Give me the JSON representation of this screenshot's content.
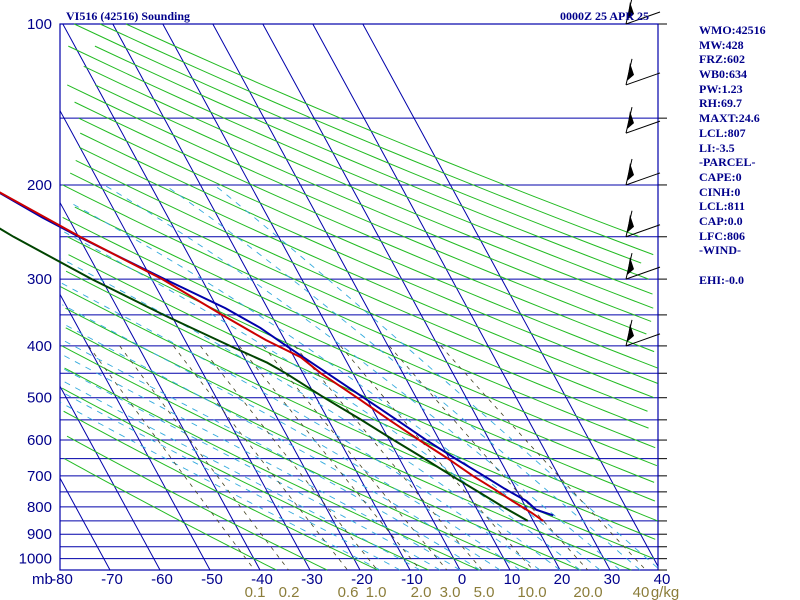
{
  "header": {
    "title_left": "VI516 (42516) Sounding",
    "title_right": "0000Z 25 APR 25"
  },
  "stats": [
    "WMO:42516",
    "MW:428",
    "FRZ:602",
    "WB0:634",
    "PW:1.23",
    "RH:69.7",
    "MAXT:24.6",
    "LCL:807",
    "LI:-3.5",
    "-PARCEL-",
    "CAPE:0",
    "CINH:0",
    "LCL:811",
    "CAP:0.0",
    "LFC:806",
    "-WIND-",
    "",
    "EHI:-0.0"
  ],
  "chart_data": {
    "type": "line",
    "title": "VI516 (42516) Sounding",
    "pressure_unit_label": "mb",
    "pressure_tick_labels": [
      "100",
      "200",
      "300",
      "400",
      "500",
      "600",
      "700",
      "800",
      "900",
      "1000"
    ],
    "temperature_tick_labels": [
      "-80",
      "-70",
      "-60",
      "-50",
      "-40",
      "-30",
      "-20",
      "-10",
      "0",
      "10",
      "20",
      "30",
      "40"
    ],
    "mixing_ratio_labels": [
      "0.1",
      "0.2",
      "0.6",
      "1.0",
      "2.0",
      "3.0",
      "5.0",
      "10.0",
      "20.0",
      "40",
      "g/kg"
    ],
    "mixing_ratio_values": [
      0.1,
      0.2,
      0.6,
      1.0,
      2.0,
      3.0,
      5.0,
      10.0,
      20.0,
      40.0
    ],
    "pressure_range": [
      100,
      1050
    ],
    "temperature_range": [
      -80,
      40
    ],
    "series": [
      {
        "color": "#0000aa",
        "pressure": [
          830,
          810,
          780,
          740,
          700,
          650,
          600,
          550,
          500,
          450,
          400,
          370,
          340,
          300,
          270,
          250,
          230,
          200,
          180,
          150,
          130,
          120
        ],
        "values": [
          24.6,
          21.8,
          20.8,
          17.8,
          15.0,
          11.2,
          7.4,
          3.7,
          -0.5,
          -5.1,
          -10.3,
          -13.6,
          -18.4,
          -27.4,
          -34.7,
          -39.9,
          -45.2,
          -52.9,
          -57.9,
          -66.8,
          -73.2,
          -76.3
        ]
      },
      {
        "color": "#cc0000",
        "pressure": [
          850,
          820,
          780,
          740,
          700,
          650,
          600,
          550,
          500,
          450,
          420,
          390,
          350,
          300,
          250,
          200,
          150,
          100
        ],
        "values": [
          22.0,
          20.5,
          18.0,
          15.6,
          12.8,
          9.7,
          6.0,
          2.2,
          -1.8,
          -6.4,
          -8.7,
          -13.8,
          -19.8,
          -27.9,
          -39.7,
          -52.8,
          -63.6,
          -75.3
        ]
      },
      {
        "color": "#004400",
        "pressure": [
          850,
          800,
          750,
          700,
          650,
          600,
          550,
          500,
          450,
          430,
          400,
          350,
          300,
          250,
          200,
          170,
          150,
          130
        ],
        "values": [
          18.9,
          15.5,
          12.2,
          8.6,
          5.0,
          0.9,
          -3.4,
          -8.4,
          -13.4,
          -16.0,
          -21.6,
          -31.5,
          -42.0,
          -53.0,
          -64.8,
          -72.2,
          -77.4,
          -81.8
        ]
      }
    ],
    "wind_barb_levels": [
      100,
      130,
      160,
      200,
      250,
      300,
      400
    ],
    "grid": true
  }
}
